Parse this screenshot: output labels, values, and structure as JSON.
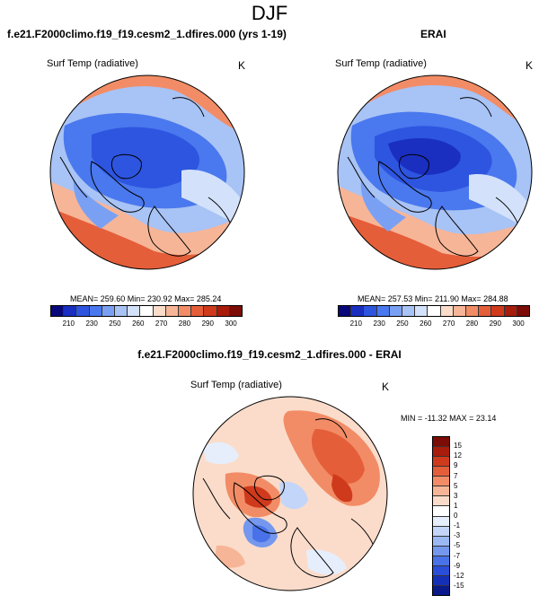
{
  "figure": {
    "title": "DJF"
  },
  "panels": {
    "model": {
      "title": "f.e21.F2000climo.f19_f19.cesm2_1.dfires.000 (yrs 1-19)",
      "variable": "Surf Temp (radiative)",
      "units": "K",
      "stats": "MEAN= 259.60  Min= 230.92  Max= 285.24"
    },
    "obs": {
      "title": "ERAI",
      "variable": "Surf Temp (radiative)",
      "units": "K",
      "stats": "MEAN= 257.53  Min= 211.90  Max= 284.88"
    },
    "diff": {
      "title": "f.e21.F2000climo.f19_f19.cesm2_1.dfires.000 - ERAI",
      "variable": "Surf Temp (radiative)",
      "units": "K",
      "stats": "MIN = -11.32 MAX =  23.14"
    }
  },
  "colorbars": {
    "temperature": {
      "labels": [
        "210",
        "230",
        "250",
        "260",
        "270",
        "280",
        "290",
        "300"
      ],
      "colors": [
        "#08087a",
        "#1a2fc0",
        "#2e55e0",
        "#4a78ee",
        "#7aa0f3",
        "#a8c3f5",
        "#d3e2fa",
        "#ffffff",
        "#fbdcca",
        "#f7b597",
        "#f28c66",
        "#e55e3a",
        "#cf3a1c",
        "#a81c0c",
        "#7c0c06"
      ]
    },
    "difference": {
      "labels": [
        "15",
        "12",
        "9",
        "7",
        "5",
        "3",
        "1",
        "0",
        "-1",
        "-3",
        "-5",
        "-7",
        "-9",
        "-12",
        "-15"
      ],
      "colors": [
        "#7c0c06",
        "#a81c0c",
        "#cf3a1c",
        "#e55e3a",
        "#f28c66",
        "#f7b597",
        "#fbdcca",
        "#ffffff",
        "#e6eefc",
        "#c3d5f8",
        "#9cb8f3",
        "#7598ee",
        "#4a72e8",
        "#2a4ed8",
        "#1530b8",
        "#0a1a8a"
      ]
    }
  }
}
